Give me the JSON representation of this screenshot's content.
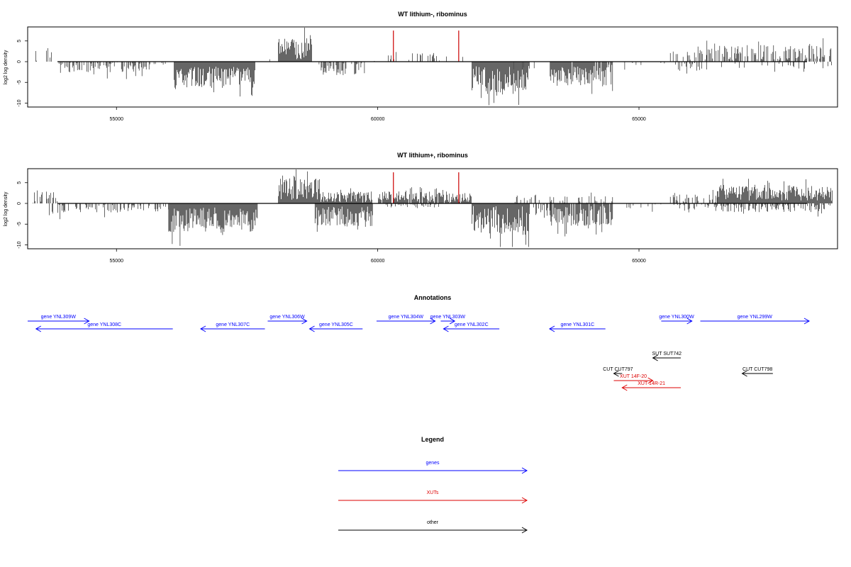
{
  "chart_data": [
    {
      "type": "bar",
      "title": "WT lithium-, ribominus",
      "ylabel": "log2 log density",
      "xlabel": "",
      "xlim": [
        53300,
        68800
      ],
      "ylim": [
        -10.5,
        8.2
      ],
      "grid": false,
      "xticks": [
        55000,
        60000,
        65000
      ],
      "xtick_labels": [
        "55000",
        "60000",
        "65000"
      ],
      "yticks": [
        5,
        0,
        -5,
        -10
      ],
      "ytick_labels": [
        "5",
        "0",
        "-5",
        "-10"
      ],
      "highlights": [
        {
          "x": 60300,
          "value": 7.5
        },
        {
          "x": 61550,
          "value": 7.5
        }
      ],
      "regions": [
        {
          "start": 53400,
          "end": 53600,
          "sign": 1,
          "mean": 1.5,
          "amp": 1.5,
          "density": 0.18
        },
        {
          "start": 53620,
          "end": 53850,
          "sign": 1,
          "mean": 2.0,
          "amp": 1.3,
          "density": 0.25
        },
        {
          "start": 53900,
          "end": 55650,
          "sign": -1,
          "mean": 1.4,
          "amp": 1.3,
          "density": 0.55
        },
        {
          "start": 55650,
          "end": 56000,
          "sign": -1,
          "mean": 0.8,
          "amp": 0.6,
          "density": 0.15
        },
        {
          "start": 56100,
          "end": 57650,
          "sign": -1,
          "mean": 3.8,
          "amp": 2.6,
          "density": 1
        },
        {
          "start": 57700,
          "end": 58050,
          "sign": 1,
          "mean": 0.5,
          "amp": 0.3,
          "density": 0.05
        },
        {
          "start": 58100,
          "end": 58750,
          "sign": 1,
          "mean": 3.2,
          "amp": 2.6,
          "density": 1
        },
        {
          "start": 58850,
          "end": 59750,
          "sign": -1,
          "mean": 1.8,
          "amp": 1.5,
          "density": 0.5
        },
        {
          "start": 59800,
          "end": 60200,
          "sign": 1,
          "mean": 0.3,
          "amp": 0.2,
          "density": 0.04
        },
        {
          "start": 60200,
          "end": 61800,
          "sign": 1,
          "mean": 1.4,
          "amp": 1.2,
          "density": 0.15
        },
        {
          "start": 61800,
          "end": 62900,
          "sign": -1,
          "mean": 4.5,
          "amp": 3.5,
          "density": 1
        },
        {
          "start": 62600,
          "end": 63000,
          "sign": -1,
          "mean": 2.5,
          "amp": 2.5,
          "density": 0.2
        },
        {
          "start": 63300,
          "end": 64500,
          "sign": -1,
          "mean": 3.2,
          "amp": 2.5,
          "density": 0.9
        },
        {
          "start": 64700,
          "end": 65600,
          "sign": -1,
          "mean": 0.8,
          "amp": 0.6,
          "density": 0.1
        },
        {
          "start": 65600,
          "end": 66300,
          "sign": 1,
          "mean": 1.6,
          "amp": 1.2,
          "density": 0.35
        },
        {
          "start": 65700,
          "end": 66300,
          "sign": -1,
          "mean": 1.2,
          "amp": 1.0,
          "density": 0.2
        },
        {
          "start": 66300,
          "end": 68700,
          "sign": 1,
          "mean": 2.2,
          "amp": 1.8,
          "density": 0.5
        },
        {
          "start": 66500,
          "end": 68700,
          "sign": -1,
          "mean": 0.9,
          "amp": 0.8,
          "density": 0.15
        }
      ]
    },
    {
      "type": "bar",
      "title": "WT lithium+, ribominus",
      "ylabel": "log2 log density",
      "xlabel": "",
      "xlim": [
        53300,
        68800
      ],
      "ylim": [
        -10.5,
        8.2
      ],
      "grid": false,
      "xticks": [
        55000,
        60000,
        65000
      ],
      "xtick_labels": [
        "55000",
        "60000",
        "65000"
      ],
      "yticks": [
        5,
        0,
        -5,
        -10
      ],
      "ytick_labels": [
        "5",
        "0",
        "-5",
        "-10"
      ],
      "highlights": [
        {
          "x": 60300,
          "value": 7.5
        },
        {
          "x": 61550,
          "value": 7.5
        }
      ],
      "regions": [
        {
          "start": 53400,
          "end": 53900,
          "sign": 1,
          "mean": 1.6,
          "amp": 1.6,
          "density": 0.3
        },
        {
          "start": 53700,
          "end": 54300,
          "sign": -1,
          "mean": 1.6,
          "amp": 1.4,
          "density": 0.4
        },
        {
          "start": 54300,
          "end": 56000,
          "sign": -1,
          "mean": 1.2,
          "amp": 1.0,
          "density": 0.35
        },
        {
          "start": 56000,
          "end": 57700,
          "sign": -1,
          "mean": 4.0,
          "amp": 3.0,
          "density": 1
        },
        {
          "start": 58100,
          "end": 58900,
          "sign": 1,
          "mean": 3.8,
          "amp": 3.0,
          "density": 1
        },
        {
          "start": 58900,
          "end": 59900,
          "sign": 1,
          "mean": 1.6,
          "amp": 1.4,
          "density": 1
        },
        {
          "start": 58800,
          "end": 59900,
          "sign": -1,
          "mean": 3.2,
          "amp": 2.5,
          "density": 1
        },
        {
          "start": 60000,
          "end": 61800,
          "sign": 1,
          "mean": 1.6,
          "amp": 1.3,
          "density": 0.9
        },
        {
          "start": 60000,
          "end": 61200,
          "sign": -1,
          "mean": 0.6,
          "amp": 0.4,
          "density": 0.3
        },
        {
          "start": 61800,
          "end": 62900,
          "sign": -1,
          "mean": 4.2,
          "amp": 3.6,
          "density": 1
        },
        {
          "start": 62600,
          "end": 63100,
          "sign": 1,
          "mean": 1.2,
          "amp": 1.0,
          "density": 0.3
        },
        {
          "start": 62900,
          "end": 63300,
          "sign": -1,
          "mean": 1.6,
          "amp": 1.4,
          "density": 0.5
        },
        {
          "start": 63300,
          "end": 64500,
          "sign": -1,
          "mean": 3.0,
          "amp": 2.4,
          "density": 0.9
        },
        {
          "start": 63300,
          "end": 64500,
          "sign": 1,
          "mean": 1.0,
          "amp": 0.8,
          "density": 0.3
        },
        {
          "start": 64700,
          "end": 65600,
          "sign": -1,
          "mean": 0.9,
          "amp": 0.7,
          "density": 0.15
        },
        {
          "start": 65600,
          "end": 66500,
          "sign": 1,
          "mean": 1.2,
          "amp": 1.0,
          "density": 0.4
        },
        {
          "start": 65600,
          "end": 66500,
          "sign": -1,
          "mean": 1.0,
          "amp": 0.8,
          "density": 0.3
        },
        {
          "start": 66500,
          "end": 68700,
          "sign": 1,
          "mean": 2.4,
          "amp": 1.8,
          "density": 1
        },
        {
          "start": 66500,
          "end": 68700,
          "sign": -1,
          "mean": 1.2,
          "amp": 0.9,
          "density": 0.45
        }
      ]
    }
  ],
  "annotations": {
    "title": "Annotations",
    "features": [
      {
        "label": "gene YNL309W",
        "start": 53300,
        "end": 54400,
        "strand": "+",
        "kind": "gene",
        "row": 0
      },
      {
        "label": "gene YNL308C",
        "start": 53450,
        "end": 55900,
        "strand": "-",
        "kind": "gene",
        "row": 1
      },
      {
        "label": "gene YNL307C",
        "start": 56400,
        "end": 57550,
        "strand": "-",
        "kind": "gene",
        "row": 1
      },
      {
        "label": "gene YNL306W",
        "start": 57600,
        "end": 58300,
        "strand": "+",
        "kind": "gene",
        "row": 0
      },
      {
        "label": "gene YNL305C",
        "start": 58350,
        "end": 59300,
        "strand": "-",
        "kind": "gene",
        "row": 1
      },
      {
        "label": "gene YNL304W",
        "start": 59550,
        "end": 60600,
        "strand": "+",
        "kind": "gene",
        "row": 0
      },
      {
        "label": "gene YNL303W",
        "start": 60700,
        "end": 60950,
        "strand": "+",
        "kind": "gene",
        "row": 0
      },
      {
        "label": "gene YNL302C",
        "start": 60750,
        "end": 61750,
        "strand": "-",
        "kind": "gene",
        "row": 1
      },
      {
        "label": "gene YNL301C",
        "start": 62650,
        "end": 63650,
        "strand": "-",
        "kind": "gene",
        "row": 1
      },
      {
        "label": "gene YNL300W",
        "start": 64650,
        "end": 65200,
        "strand": "+",
        "kind": "gene",
        "row": 0
      },
      {
        "label": "gene YNL299W",
        "start": 65350,
        "end": 67300,
        "strand": "+",
        "kind": "gene",
        "row": 0
      },
      {
        "label": "SUT SUT742",
        "start": 64500,
        "end": 65000,
        "strand": "-",
        "kind": "other",
        "row": 3
      },
      {
        "label": "CUT CUT797",
        "start": 63800,
        "end": 63950,
        "strand": "-",
        "kind": "other",
        "row": 5
      },
      {
        "label": "XUT 14F-20",
        "start": 63800,
        "end": 64500,
        "strand": "+",
        "kind": "xut",
        "row": 6
      },
      {
        "label": "XUT 14R-21",
        "start": 63950,
        "end": 65000,
        "strand": "-",
        "kind": "xut",
        "row": 7
      },
      {
        "label": "CUT CUT798",
        "start": 66100,
        "end": 66650,
        "strand": "-",
        "kind": "other",
        "row": 5
      }
    ]
  },
  "legend": {
    "title": "Legend",
    "items": [
      {
        "label": "genes",
        "color": "#0000ff"
      },
      {
        "label": "XUTs",
        "color": "#dd0000"
      },
      {
        "label": "other",
        "color": "#000000"
      }
    ]
  },
  "colors": {
    "gene": "#0000ff",
    "xut": "#dd0000",
    "other": "#000000",
    "highlight": "#cc0000"
  }
}
